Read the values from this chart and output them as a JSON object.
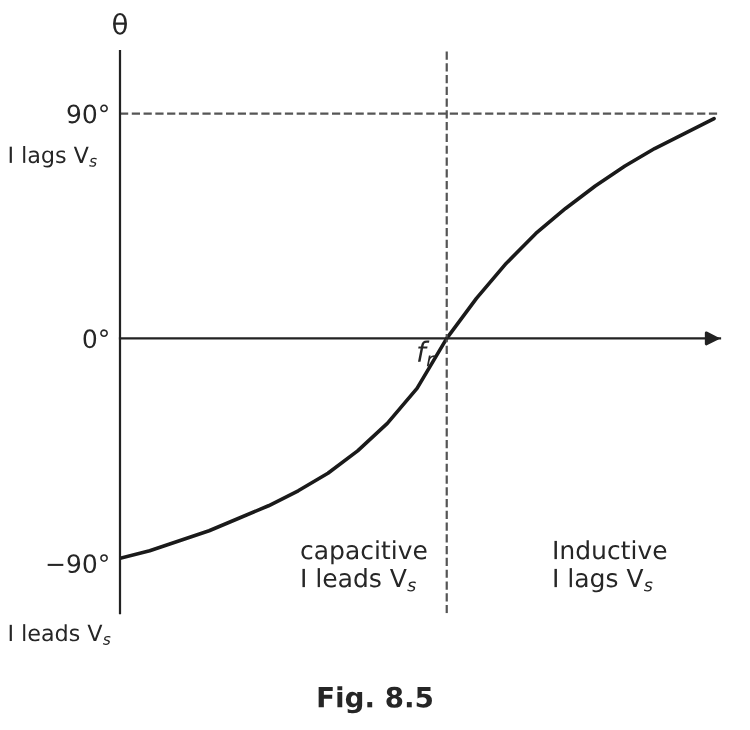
{
  "chart_data": {
    "type": "line",
    "ylabel": "θ",
    "categories": [
      null,
      null,
      null,
      null,
      null,
      null,
      null,
      null,
      null,
      null,
      null,
      null,
      null,
      null,
      null,
      null,
      null,
      null,
      null,
      null,
      null
    ],
    "series": [
      {
        "color": "#1a1a1a",
        "values": [
          -88,
          -85,
          -81,
          -77,
          -72,
          -67,
          -61,
          -54,
          -45,
          -34,
          -20,
          0,
          16,
          30,
          42,
          52,
          61,
          69,
          76,
          82,
          88
        ]
      }
    ],
    "ylim": [
      -110,
      115
    ],
    "yticks": [
      {
        "value": 90,
        "label": "90°"
      },
      {
        "value": 0,
        "label": "0°"
      },
      {
        "value": -90,
        "label": "−90°"
      }
    ],
    "tick_labels": "y",
    "ref_lines": [
      {
        "axis": "y",
        "value": 90,
        "line_style": "dashed",
        "color": "#555555"
      }
    ],
    "annotations": [
      "I lags V$_{s}$",
      "I leads V$_{s}$",
      "capacitive\nI leads V$_{s}$",
      "Inductive\nI lags V$_{s}$",
      "Fig. 8.5",
      "f$_{r}$"
    ],
    "grid": false,
    "legend": false,
    "marker": "none",
    "line_style": "solid"
  }
}
